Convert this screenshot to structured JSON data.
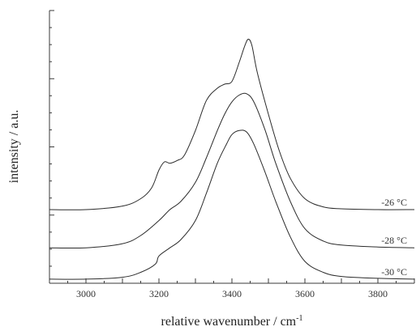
{
  "chart_data": {
    "type": "line",
    "title": "",
    "xlabel": "relative wavenumber / cm",
    "xlabel_superscript": "-1",
    "ylabel": "intensity / a.u.",
    "xlim": [
      2900,
      3900
    ],
    "ylim": [
      0,
      1
    ],
    "x_ticks": [
      3000,
      3200,
      3400,
      3600,
      3800
    ],
    "x_tick_labels": [
      "3000",
      "3200",
      "3400",
      "3600",
      "3800"
    ],
    "y_tick_labels_shown": false,
    "grid": false,
    "legend": "none",
    "series": [
      {
        "name": "-26 °C",
        "label": "-26 °C",
        "x": [
          2900,
          3000,
          3100,
          3150,
          3180,
          3200,
          3215,
          3230,
          3250,
          3270,
          3300,
          3330,
          3360,
          3380,
          3400,
          3420,
          3435,
          3445,
          3455,
          3470,
          3500,
          3530,
          3560,
          3600,
          3650,
          3700,
          3800,
          3900
        ],
        "values": [
          0.27,
          0.27,
          0.283,
          0.31,
          0.35,
          0.415,
          0.445,
          0.44,
          0.45,
          0.47,
          0.56,
          0.67,
          0.715,
          0.73,
          0.74,
          0.81,
          0.87,
          0.895,
          0.87,
          0.77,
          0.62,
          0.485,
          0.385,
          0.31,
          0.28,
          0.273,
          0.27,
          0.27
        ],
        "color": "#2b2b2b"
      },
      {
        "name": "-28 °C",
        "label": "-28 °C",
        "x": [
          2900,
          3000,
          3100,
          3150,
          3200,
          3230,
          3260,
          3300,
          3330,
          3360,
          3380,
          3400,
          3420,
          3440,
          3460,
          3490,
          3520,
          3560,
          3600,
          3650,
          3700,
          3800,
          3900
        ],
        "values": [
          0.13,
          0.13,
          0.145,
          0.175,
          0.23,
          0.27,
          0.3,
          0.37,
          0.46,
          0.56,
          0.62,
          0.665,
          0.69,
          0.695,
          0.665,
          0.565,
          0.44,
          0.3,
          0.2,
          0.155,
          0.14,
          0.133,
          0.13
        ],
        "color": "#2b2b2b"
      },
      {
        "name": "-30 °C",
        "label": "-30 °C",
        "x": [
          2900,
          3000,
          3100,
          3150,
          3190,
          3200,
          3230,
          3260,
          3300,
          3330,
          3360,
          3385,
          3400,
          3420,
          3440,
          3460,
          3490,
          3520,
          3560,
          3600,
          3650,
          3700,
          3800,
          3900
        ],
        "values": [
          0.015,
          0.015,
          0.022,
          0.04,
          0.07,
          0.1,
          0.13,
          0.16,
          0.23,
          0.33,
          0.44,
          0.51,
          0.545,
          0.56,
          0.555,
          0.51,
          0.41,
          0.3,
          0.17,
          0.08,
          0.04,
          0.025,
          0.018,
          0.015
        ],
        "color": "#2b2b2b"
      }
    ]
  }
}
